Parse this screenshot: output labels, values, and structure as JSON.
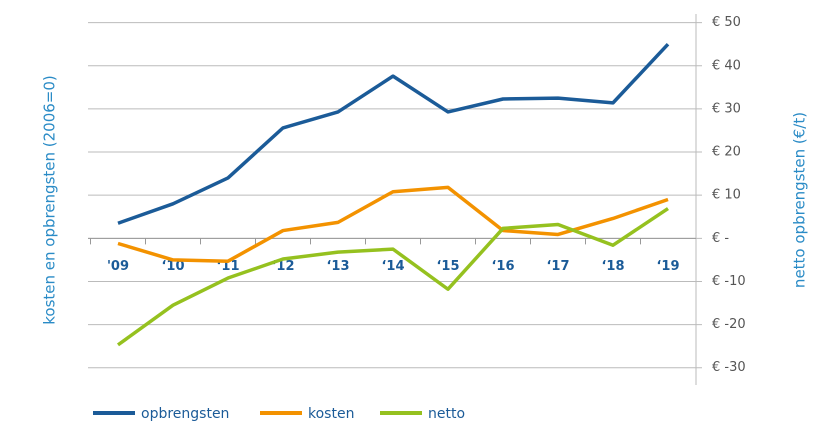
{
  "chart_data": {
    "type": "line",
    "y_label": "kosten en opbrengsten (2006=0)",
    "y2_label": "netto opbrengsten (€/t)",
    "categories": [
      "'09",
      "‘10",
      "‘11",
      "‘12",
      "‘13",
      "‘14",
      "‘15",
      "‘16",
      "‘17",
      "‘18",
      "‘19"
    ],
    "series": [
      {
        "name": "opbrengsten",
        "color": "#1b5b98",
        "values": [
          3.5,
          8,
          14,
          25.6,
          29.3,
          37.6,
          29.3,
          32.3,
          32.5,
          31.4,
          45
        ]
      },
      {
        "name": "kosten",
        "color": "#f39200",
        "values": [
          -1.2,
          -5,
          -5.3,
          1.8,
          3.7,
          10.8,
          11.8,
          1.8,
          0.9,
          4.6,
          9
        ]
      },
      {
        "name": "netto",
        "color": "#95c11f",
        "values": [
          -24.7,
          -15.5,
          -9.2,
          -4.8,
          -3.2,
          -2.5,
          -11.8,
          2.3,
          3.2,
          -1.6,
          6.9
        ]
      }
    ],
    "ylim": [
      -34,
      52
    ],
    "yticks": [
      {
        "value": 50,
        "label": "€ 50"
      },
      {
        "value": 40,
        "label": "€ 40"
      },
      {
        "value": 30,
        "label": "€ 30"
      },
      {
        "value": 20,
        "label": "€ 20"
      },
      {
        "value": 10,
        "label": "€ 10"
      },
      {
        "value": 0,
        "label": "€ -"
      },
      {
        "value": -10,
        "label": "€ -10"
      },
      {
        "value": -20,
        "label": "€ -20"
      },
      {
        "value": -30,
        "label": "€ -30"
      }
    ],
    "grid": true
  }
}
